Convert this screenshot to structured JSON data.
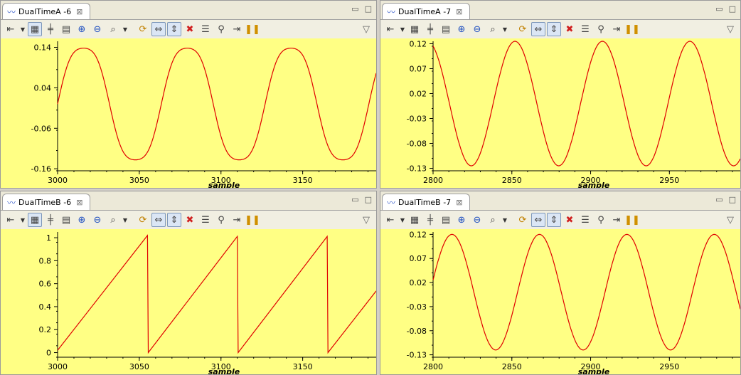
{
  "toolbar_icons": [
    "marker-icon",
    "layout-icon",
    "align-icon",
    "range-icon",
    "zoom-in-icon",
    "zoom-out-icon",
    "zoom-fit-icon",
    "refresh-icon",
    "auto-scale-h-icon",
    "auto-scale-v-icon",
    "delete-icon",
    "list-icon",
    "find-icon",
    "step-icon",
    "pause-icon"
  ],
  "colors": {
    "plot_bg": "#ffff84",
    "trace": "#e00000"
  },
  "views": [
    {
      "id": "a6",
      "title": "DualTimeA -6",
      "chart_data": {
        "type": "line",
        "xlabel": "sample",
        "xlim": [
          3000,
          3195
        ],
        "ylim": [
          -0.165,
          0.155
        ],
        "xticks": [
          3000,
          3050,
          3100,
          3150
        ],
        "yticks": [
          0.14,
          0.04,
          -0.06,
          -0.16
        ],
        "ytick_labels": [
          "0.14",
          "0.04",
          "-0.06",
          "-0.16"
        ],
        "waveform": "clipped-sine",
        "series": [
          {
            "amplitude": 0.15,
            "period": 63.5,
            "phase_x": 3000,
            "clip": 0.145
          }
        ]
      }
    },
    {
      "id": "a7",
      "title": "DualTimeA -7",
      "chart_data": {
        "type": "line",
        "xlabel": "sample",
        "xlim": [
          2800,
          2995
        ],
        "ylim": [
          -0.135,
          0.125
        ],
        "xticks": [
          2800,
          2850,
          2900,
          2950
        ],
        "yticks": [
          0.12,
          0.07,
          0.02,
          -0.03,
          -0.08,
          -0.13
        ],
        "ytick_labels": [
          "0.12",
          "0.07",
          "0.02",
          "-0.03",
          "-0.08",
          "-0.13"
        ],
        "waveform": "sine",
        "series": [
          {
            "amplitude": 0.125,
            "period": 55.5,
            "peak_x": 2852
          }
        ]
      }
    },
    {
      "id": "b6",
      "title": "DualTimeB -6",
      "chart_data": {
        "type": "line",
        "xlabel": "sample",
        "xlim": [
          3000,
          3195
        ],
        "ylim": [
          -0.04,
          1.05
        ],
        "xticks": [
          3000,
          3050,
          3100,
          3150
        ],
        "yticks": [
          1,
          0.8,
          0.6,
          0.4,
          0.2,
          0
        ],
        "ytick_labels": [
          "1",
          "0.8",
          "0.6",
          "0.4",
          "0.2",
          "0"
        ],
        "waveform": "sawtooth",
        "series": [
          {
            "resets": [
              3055,
              3110,
              3165
            ],
            "slope": 0.01818,
            "start_value": 0.02
          }
        ]
      }
    },
    {
      "id": "b7",
      "title": "DualTimeB -7",
      "chart_data": {
        "type": "line",
        "xlabel": "sample",
        "xlim": [
          2800,
          2995
        ],
        "ylim": [
          -0.135,
          0.125
        ],
        "xticks": [
          2800,
          2850,
          2900,
          2950
        ],
        "yticks": [
          0.12,
          0.07,
          0.02,
          -0.03,
          -0.08,
          -0.13
        ],
        "ytick_labels": [
          "0.12",
          "0.07",
          "0.02",
          "-0.03",
          "-0.08",
          "-0.13"
        ],
        "waveform": "sine",
        "series": [
          {
            "amplitude": 0.12,
            "period": 55.5,
            "peak_x": 2812
          }
        ]
      }
    }
  ]
}
